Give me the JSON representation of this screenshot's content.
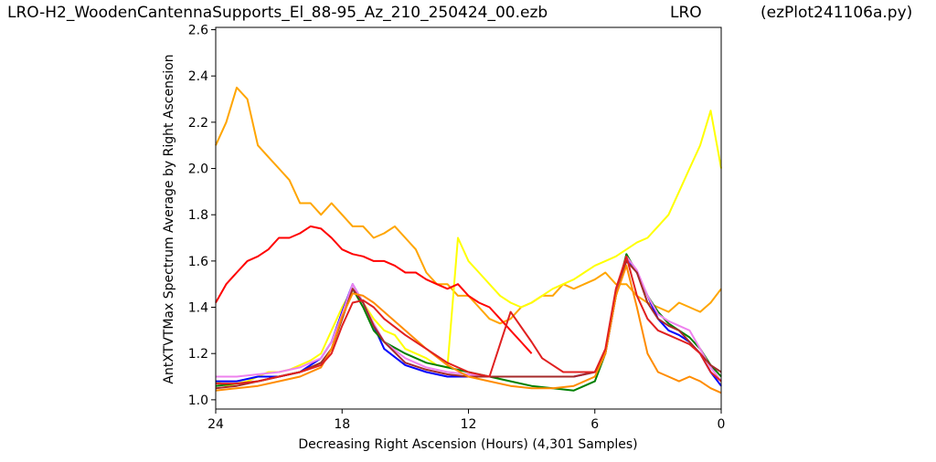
{
  "title": {
    "left": "LRO-H2_WoodenCantennaSupports_El_88-95_Az_210_250424_00.ezb",
    "middle": "LRO",
    "right": "(ezPlot241106a.py)"
  },
  "chart_data": {
    "type": "line",
    "xlabel": "Decreasing Right Ascension (Hours) (4,301 Samples)",
    "ylabel": "AntXTVTMax Spectrum Average by Right Ascension",
    "xlim": [
      24,
      0
    ],
    "ylim": [
      0.96,
      2.61
    ],
    "x_ticks": [
      24,
      18,
      12,
      6,
      0
    ],
    "x_tick_labels": [
      "24",
      "18",
      "12",
      "6",
      "0"
    ],
    "y_ticks": [
      1.0,
      1.2,
      1.4,
      1.6,
      1.8,
      2.0,
      2.2,
      2.4,
      2.6
    ],
    "y_tick_labels": [
      "1.0",
      "1.2",
      "1.4",
      "1.6",
      "1.8",
      "2.0",
      "2.2",
      "2.4",
      "2.6"
    ],
    "grid": false,
    "legend": "none",
    "series": [
      {
        "color": "#FFA500",
        "x": [
          24,
          23.5,
          23,
          22.5,
          22,
          21.5,
          21,
          20.5,
          20,
          19.5,
          19,
          18.5,
          18,
          17.5,
          17,
          16.5,
          16,
          15.5,
          15,
          14.5,
          14,
          13.5,
          13,
          12.5,
          12,
          11.5,
          11,
          10.5,
          10,
          9.5,
          9,
          8.5,
          8,
          7.5,
          7,
          6.5,
          6,
          5.5,
          5,
          4.5,
          4,
          3.5,
          3,
          2.5,
          2,
          1.5,
          1,
          0.5,
          0
        ],
        "y": [
          2.1,
          2.2,
          2.35,
          2.3,
          2.1,
          2.05,
          2.0,
          1.95,
          1.85,
          1.85,
          1.8,
          1.85,
          1.8,
          1.75,
          1.75,
          1.7,
          1.72,
          1.75,
          1.7,
          1.65,
          1.55,
          1.5,
          1.5,
          1.45,
          1.45,
          1.4,
          1.35,
          1.33,
          1.35,
          1.4,
          1.42,
          1.45,
          1.45,
          1.5,
          1.48,
          1.5,
          1.52,
          1.55,
          1.5,
          1.5,
          1.45,
          1.42,
          1.4,
          1.38,
          1.42,
          1.4,
          1.38,
          1.42,
          1.48
        ]
      },
      {
        "color": "#FFFF00",
        "x": [
          24,
          23.5,
          23,
          22.5,
          22,
          21.5,
          21,
          20.5,
          20,
          19.5,
          19,
          18.5,
          18,
          17.5,
          17,
          16.5,
          16,
          15.5,
          15,
          14.5,
          14,
          13.5,
          13,
          12.5,
          12,
          11.5,
          11,
          10.5,
          10,
          9.5,
          9,
          8.5,
          8,
          7.5,
          7,
          6.5,
          6,
          5.5,
          5,
          4.5,
          4,
          3.5,
          3,
          2.5,
          2,
          1.5,
          1,
          0.5,
          0
        ],
        "y": [
          1.08,
          1.06,
          1.07,
          1.08,
          1.1,
          1.12,
          1.12,
          1.13,
          1.15,
          1.17,
          1.2,
          1.3,
          1.4,
          1.48,
          1.42,
          1.35,
          1.3,
          1.28,
          1.22,
          1.2,
          1.18,
          1.15,
          1.14,
          1.7,
          1.6,
          1.55,
          1.5,
          1.45,
          1.42,
          1.4,
          1.42,
          1.45,
          1.48,
          1.5,
          1.52,
          1.55,
          1.58,
          1.6,
          1.62,
          1.65,
          1.68,
          1.7,
          1.75,
          1.8,
          1.9,
          2.0,
          2.1,
          2.25,
          2.0
        ]
      },
      {
        "color": "#FF0000",
        "x": [
          24,
          23.5,
          23,
          22.5,
          22,
          21.5,
          21,
          20.5,
          20,
          19.5,
          19,
          18.5,
          18,
          17.5,
          17,
          16.5,
          16,
          15.5,
          15,
          14.5,
          14,
          13.5,
          13,
          12.5,
          12,
          11.5,
          11,
          10.5,
          10,
          9.5,
          9
        ],
        "y": [
          1.42,
          1.5,
          1.55,
          1.6,
          1.62,
          1.65,
          1.7,
          1.7,
          1.72,
          1.75,
          1.74,
          1.7,
          1.65,
          1.63,
          1.62,
          1.6,
          1.6,
          1.58,
          1.55,
          1.55,
          1.52,
          1.5,
          1.48,
          1.5,
          1.45,
          1.42,
          1.4,
          1.35,
          1.3,
          1.25,
          1.2
        ]
      },
      {
        "color": "#0000FF",
        "x": [
          24,
          23,
          22,
          21,
          20,
          19,
          18.5,
          18,
          17.5,
          17,
          16.5,
          16,
          15,
          14,
          13,
          12,
          11,
          10,
          9,
          8,
          7,
          6,
          5.5,
          5,
          4.5,
          4,
          3.5,
          3,
          2.5,
          2,
          1.5,
          1,
          0.5,
          0
        ],
        "y": [
          1.08,
          1.08,
          1.1,
          1.1,
          1.12,
          1.18,
          1.25,
          1.38,
          1.5,
          1.42,
          1.32,
          1.22,
          1.15,
          1.12,
          1.1,
          1.1,
          1.1,
          1.1,
          1.1,
          1.1,
          1.1,
          1.12,
          1.2,
          1.45,
          1.62,
          1.55,
          1.45,
          1.35,
          1.3,
          1.28,
          1.25,
          1.2,
          1.12,
          1.06
        ]
      },
      {
        "color": "#008000",
        "x": [
          24,
          23,
          22,
          21,
          20,
          19,
          18.5,
          18,
          17.5,
          17,
          16.5,
          16,
          15,
          14,
          13,
          12,
          11,
          10,
          9,
          8,
          7,
          6,
          5.5,
          5,
          4.5,
          4,
          3.5,
          3,
          2.5,
          2,
          1.5,
          1,
          0.5,
          0
        ],
        "y": [
          1.06,
          1.07,
          1.08,
          1.1,
          1.12,
          1.16,
          1.22,
          1.35,
          1.48,
          1.4,
          1.3,
          1.25,
          1.2,
          1.16,
          1.14,
          1.12,
          1.1,
          1.08,
          1.06,
          1.05,
          1.04,
          1.08,
          1.2,
          1.45,
          1.63,
          1.55,
          1.45,
          1.38,
          1.33,
          1.3,
          1.27,
          1.22,
          1.15,
          1.1
        ]
      },
      {
        "color": "#EE82EE",
        "x": [
          24,
          23,
          22,
          21,
          20,
          19,
          18.5,
          18,
          17.5,
          17,
          16.5,
          16,
          15,
          14,
          13,
          12,
          11,
          10,
          9,
          8,
          7,
          6,
          5.5,
          5,
          4.5,
          4,
          3.5,
          3,
          2.5,
          2,
          1.5,
          1,
          0.5,
          0
        ],
        "y": [
          1.1,
          1.1,
          1.11,
          1.12,
          1.14,
          1.18,
          1.25,
          1.37,
          1.5,
          1.42,
          1.33,
          1.25,
          1.18,
          1.14,
          1.12,
          1.11,
          1.1,
          1.1,
          1.1,
          1.1,
          1.1,
          1.12,
          1.2,
          1.45,
          1.62,
          1.56,
          1.45,
          1.37,
          1.34,
          1.32,
          1.3,
          1.22,
          1.14,
          1.08
        ]
      },
      {
        "color": "#A52A2A",
        "x": [
          24,
          23,
          22,
          21,
          20,
          19,
          18.5,
          18,
          17.5,
          17,
          16.5,
          16,
          15,
          14,
          13,
          12,
          11,
          10,
          9,
          8,
          7,
          6,
          5.5,
          5,
          4.5,
          4,
          3.5,
          3,
          2.5,
          2,
          1.5,
          1,
          0.5,
          0
        ],
        "y": [
          1.05,
          1.06,
          1.08,
          1.1,
          1.12,
          1.16,
          1.22,
          1.35,
          1.48,
          1.42,
          1.32,
          1.25,
          1.16,
          1.13,
          1.11,
          1.1,
          1.1,
          1.1,
          1.1,
          1.1,
          1.1,
          1.12,
          1.2,
          1.45,
          1.6,
          1.55,
          1.42,
          1.35,
          1.32,
          1.3,
          1.25,
          1.2,
          1.15,
          1.12
        ]
      },
      {
        "color": "#FF8C00",
        "x": [
          24,
          23,
          22,
          21,
          20,
          19,
          18.5,
          18,
          17.5,
          17,
          16.5,
          16,
          15,
          14,
          13,
          12,
          11,
          10,
          9,
          8,
          7,
          6,
          5.5,
          5,
          4.5,
          4,
          3.5,
          3,
          2.5,
          2,
          1.5,
          1,
          0.5,
          0
        ],
        "y": [
          1.04,
          1.05,
          1.06,
          1.08,
          1.1,
          1.14,
          1.22,
          1.36,
          1.46,
          1.45,
          1.42,
          1.38,
          1.3,
          1.22,
          1.15,
          1.1,
          1.08,
          1.06,
          1.05,
          1.05,
          1.06,
          1.1,
          1.2,
          1.45,
          1.58,
          1.4,
          1.2,
          1.12,
          1.1,
          1.08,
          1.1,
          1.08,
          1.05,
          1.03
        ]
      },
      {
        "color": "#E02020",
        "x": [
          24,
          23,
          22,
          21,
          20,
          19,
          18.5,
          18,
          17.5,
          17,
          16.5,
          16,
          15,
          14,
          13,
          12,
          11,
          10,
          9,
          8.5,
          8,
          7.5,
          7,
          6,
          5.5,
          5,
          4.5,
          4,
          3.5,
          3,
          2.5,
          2,
          1.5,
          1,
          0.5,
          0
        ],
        "y": [
          1.07,
          1.07,
          1.08,
          1.1,
          1.12,
          1.15,
          1.2,
          1.32,
          1.42,
          1.43,
          1.4,
          1.35,
          1.28,
          1.22,
          1.16,
          1.12,
          1.1,
          1.38,
          1.25,
          1.18,
          1.15,
          1.12,
          1.12,
          1.12,
          1.22,
          1.48,
          1.62,
          1.45,
          1.35,
          1.3,
          1.28,
          1.26,
          1.24,
          1.2,
          1.12,
          1.08
        ]
      }
    ]
  }
}
